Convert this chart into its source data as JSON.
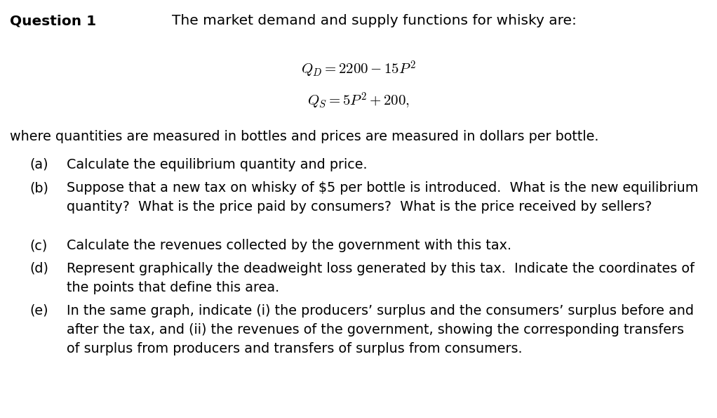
{
  "background_color": "#ffffff",
  "title_bold": "Question 1",
  "title_normal": "The market demand and supply functions for whisky are:",
  "eq1": "$\\mathit{Q}_D = 2200 - 15P^2$",
  "eq2": "$\\mathit{Q}_S = 5P^2 + 200,$",
  "line_where": "where quantities are measured in bottles and prices are measured in dollars per bottle.",
  "part_a_label": "(a)",
  "part_a_text": "Calculate the equilibrium quantity and price.",
  "part_b_label": "(b)",
  "part_b_line1": "Suppose that a new tax on whisky of $5 per bottle is introduced.  What is the new equilibrium",
  "part_b_line2": "quantity?  What is the price paid by consumers?  What is the price received by sellers?",
  "part_c_label": "(c)",
  "part_c_text": "Calculate the revenues collected by the government with this tax.",
  "part_d_label": "(d)",
  "part_d_line1": "Represent graphically the deadweight loss generated by this tax.  Indicate the coordinates of",
  "part_d_line2": "the points that define this area.",
  "part_e_label": "(e)",
  "part_e_line1": "In the same graph, indicate (i) the producers’ surplus and the consumers’ surplus before and",
  "part_e_line2": "after the tax, and (ii) the revenues of the government, showing the corresponding transfers",
  "part_e_line3": "of surplus from producers and transfers of surplus from consumers.",
  "figwidth": 10.22,
  "figheight": 5.95,
  "dpi": 100
}
